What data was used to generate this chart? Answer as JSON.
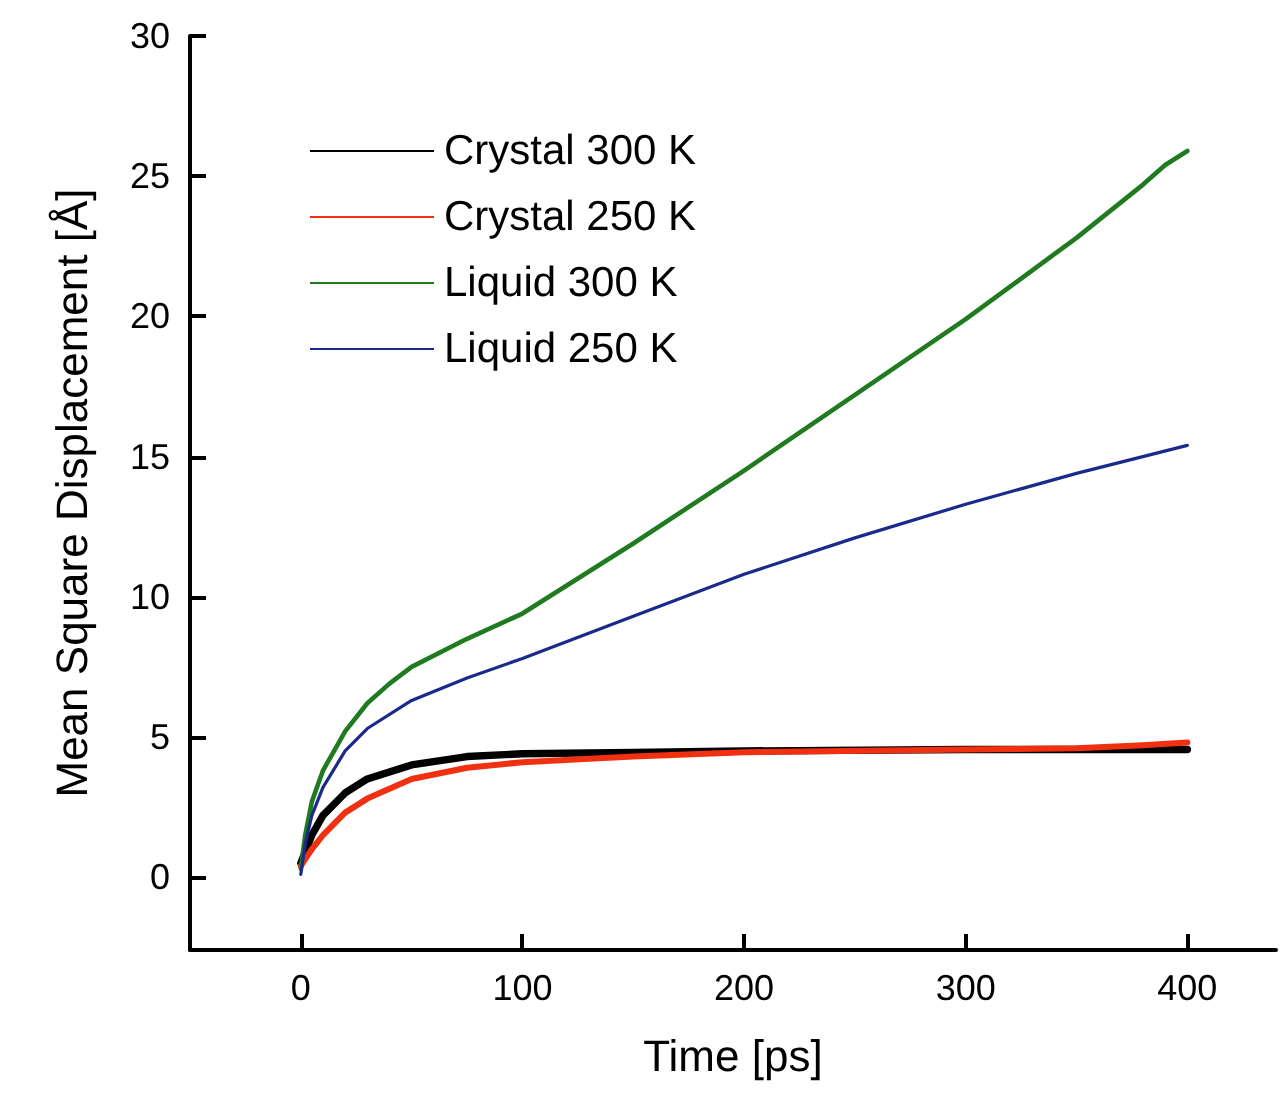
{
  "chart_data": {
    "type": "line",
    "xlabel": "Time [ps]",
    "ylabel": "Mean Square Displacement [Å]",
    "xlim": [
      -50,
      440
    ],
    "xticks": [
      0,
      100,
      200,
      300,
      400
    ],
    "ylim": [
      -2.6,
      30
    ],
    "yticks": [
      0,
      5,
      10,
      15,
      20,
      25,
      30
    ],
    "grid": false,
    "legend": "top left",
    "marker": "none",
    "line_style": "solid",
    "series": [
      {
        "name": "Crystal 300 K",
        "color": "#000000",
        "x": [
          0,
          5,
          10,
          20,
          30,
          50,
          75,
          100,
          150,
          200,
          300,
          350,
          400
        ],
        "values": [
          0.5,
          1.5,
          2.2,
          3,
          3.5,
          4.0,
          4.3,
          4.4,
          4.45,
          4.5,
          4.55,
          4.55,
          4.55
        ]
      },
      {
        "name": "Crystal 250 K",
        "color": "#f03010",
        "x": [
          0,
          5,
          10,
          20,
          30,
          50,
          75,
          100,
          150,
          200,
          300,
          350,
          380,
          400
        ],
        "values": [
          0.4,
          1.0,
          1.5,
          2.3,
          2.8,
          3.5,
          3.9,
          4.1,
          4.3,
          4.45,
          4.55,
          4.6,
          4.7,
          4.8
        ]
      },
      {
        "name": "Liquid 300 K",
        "color": "#207a20",
        "x": [
          0,
          2,
          5,
          10,
          20,
          30,
          40,
          50,
          75,
          100,
          150,
          200,
          250,
          300,
          350,
          380,
          390,
          400
        ],
        "values": [
          0.3,
          1.5,
          2.7,
          3.8,
          5.2,
          6.2,
          6.9,
          7.5,
          8.5,
          9.4,
          11.9,
          14.5,
          17.2,
          19.9,
          22.8,
          24.7,
          25.4,
          25.9
        ]
      },
      {
        "name": "Liquid 250 K",
        "color": "#1a2a8a",
        "x": [
          0,
          2,
          5,
          10,
          20,
          30,
          50,
          75,
          100,
          150,
          200,
          250,
          300,
          350,
          400
        ],
        "values": [
          0.1,
          1.2,
          2.2,
          3.2,
          4.5,
          5.3,
          6.3,
          7.1,
          7.8,
          9.3,
          10.8,
          12.1,
          13.3,
          14.4,
          15.4
        ]
      }
    ]
  }
}
